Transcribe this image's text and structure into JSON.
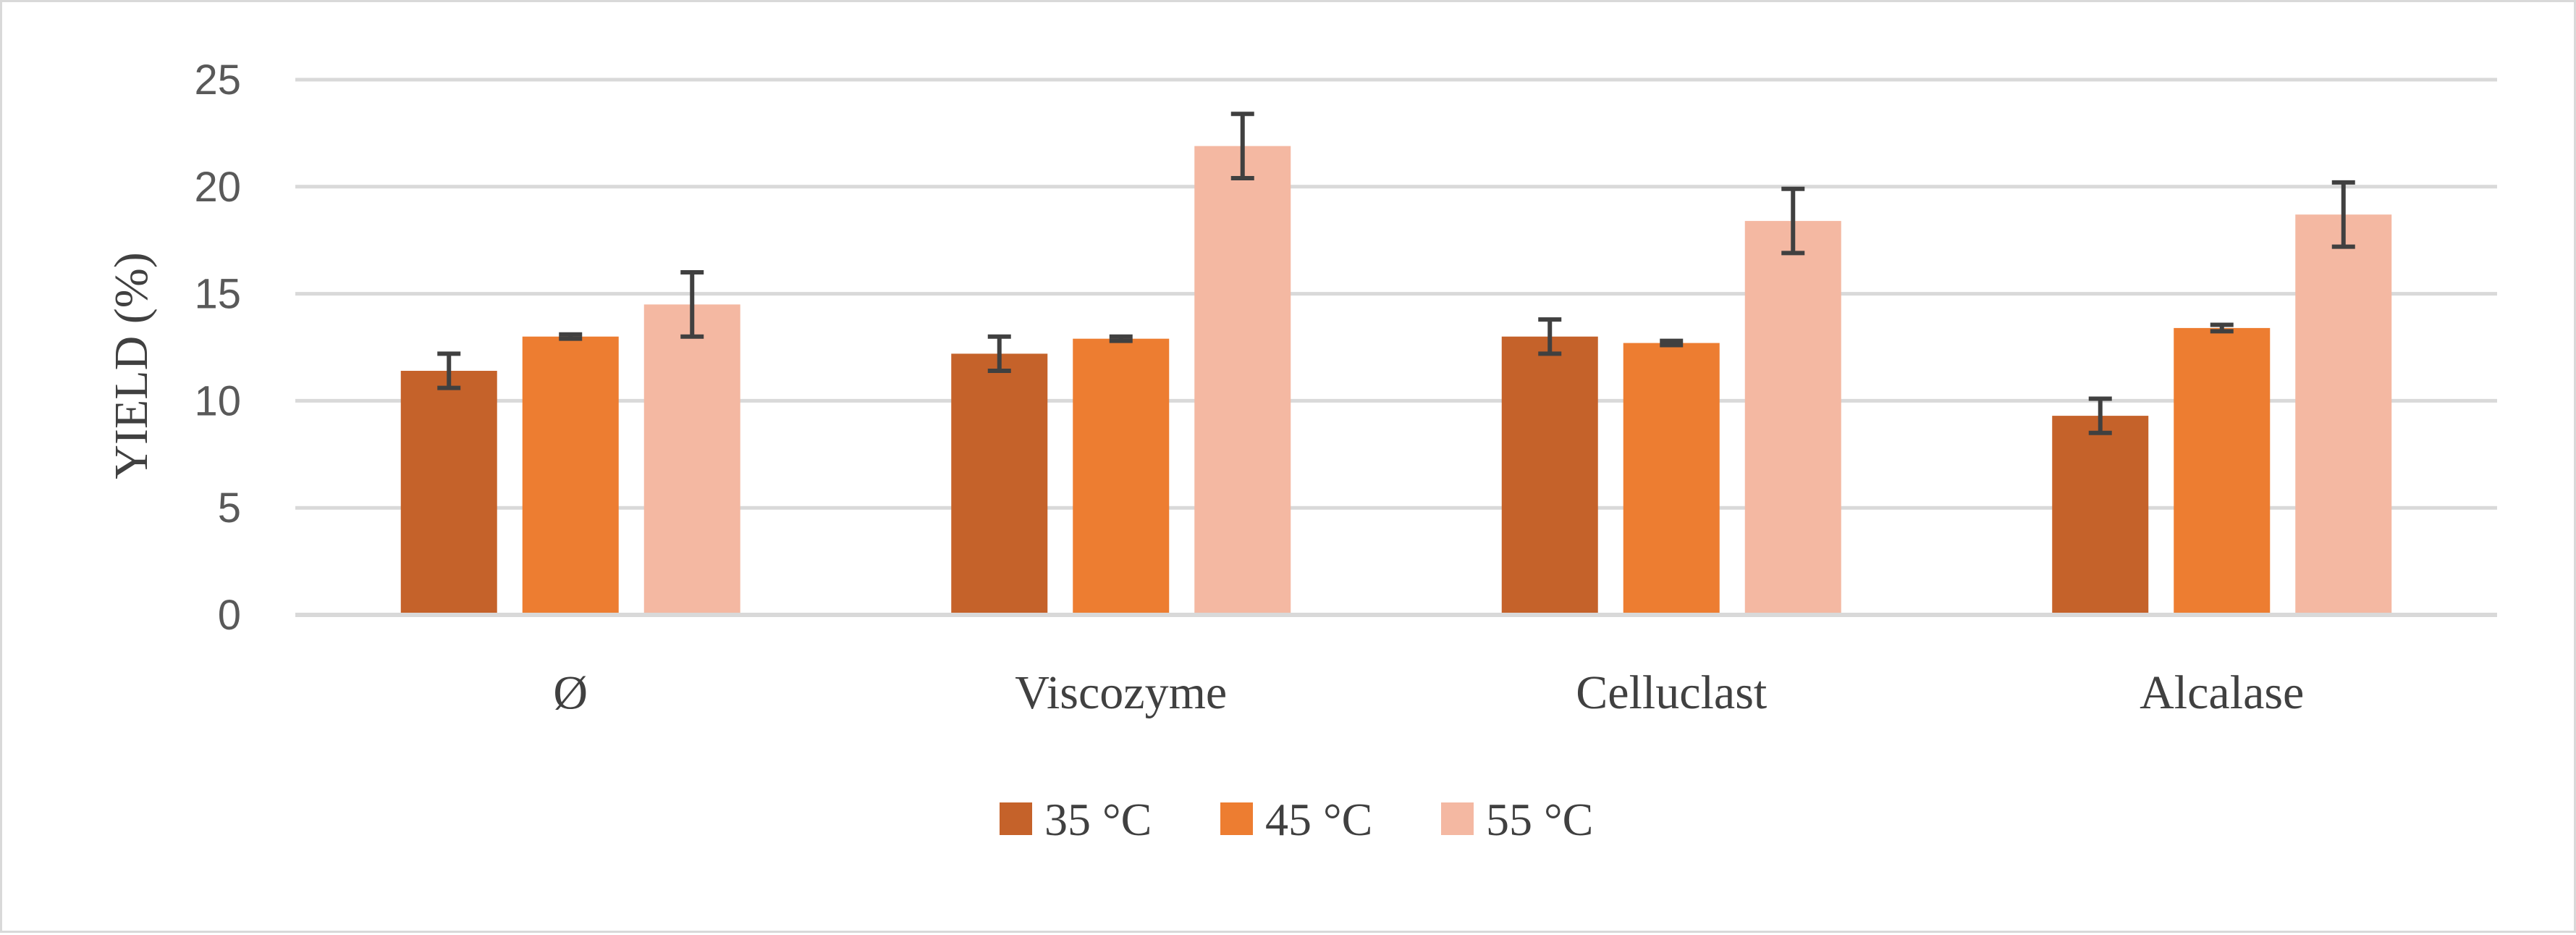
{
  "chart_data": {
    "type": "bar",
    "title": "",
    "xlabel": "",
    "ylabel": "YIELD (%)",
    "ylim": [
      0,
      25
    ],
    "yticks": [
      0,
      5,
      10,
      15,
      20,
      25
    ],
    "grid": true,
    "legend_position": "bottom",
    "categories": [
      "Ø",
      "Viscozyme",
      "Celluclast",
      "Alcalase"
    ],
    "series": [
      {
        "name": "35 °C",
        "color": "#c5622a",
        "values": [
          11.4,
          12.2,
          13.0,
          9.3
        ],
        "errors": [
          0.8,
          0.8,
          0.8,
          0.8
        ]
      },
      {
        "name": "45 °C",
        "color": "#ed7d31",
        "values": [
          13.0,
          12.9,
          12.7,
          13.4
        ],
        "errors": [
          0.1,
          0.1,
          0.1,
          0.15
        ]
      },
      {
        "name": "55 °C",
        "color": "#f4b8a2",
        "values": [
          14.5,
          21.9,
          18.4,
          18.7
        ],
        "errors": [
          1.5,
          1.5,
          1.5,
          1.5
        ]
      }
    ],
    "gridline_color": "#d9d9d9",
    "errorbar_color": "#404040"
  }
}
